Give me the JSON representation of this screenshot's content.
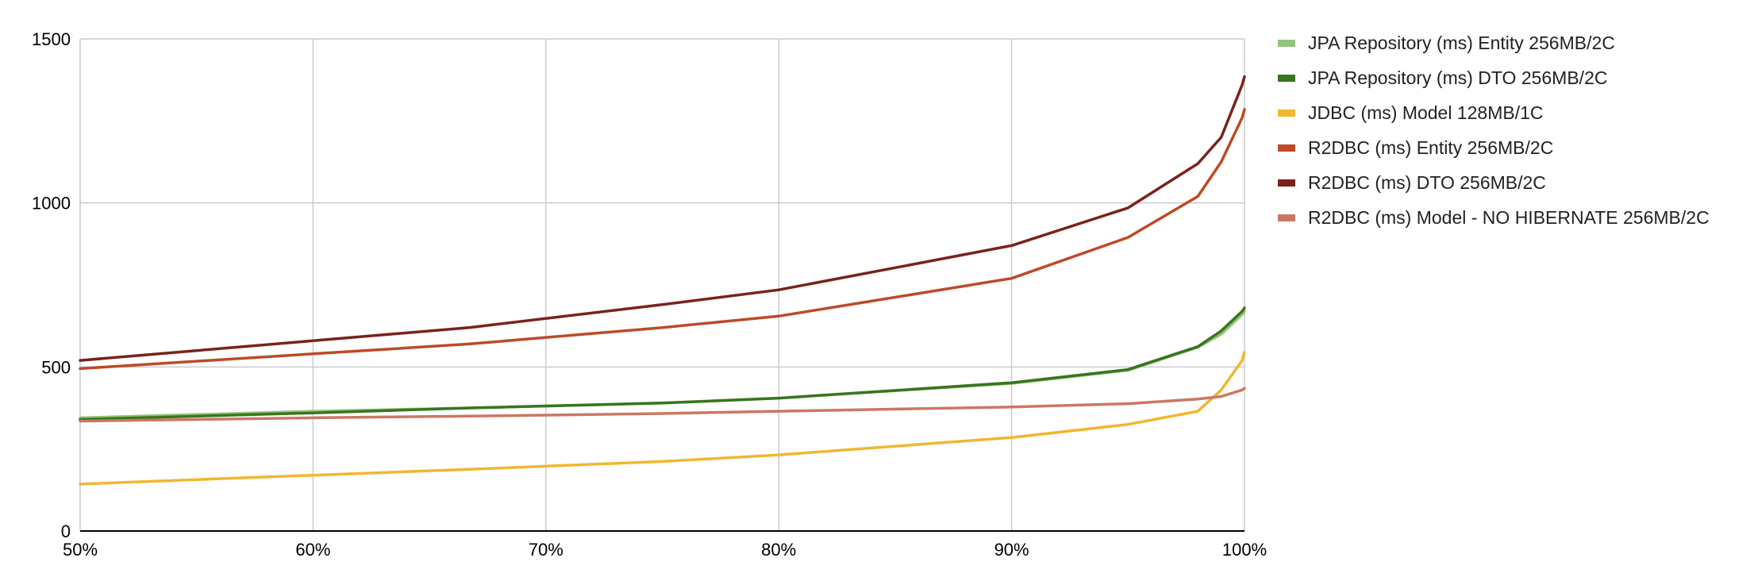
{
  "chart_data": {
    "type": "line",
    "title": "",
    "xlabel": "",
    "ylabel": "",
    "xlim": [
      50,
      100
    ],
    "ylim": [
      0,
      1500
    ],
    "grid": true,
    "legend_position": "right",
    "x_ticks": [
      "50%",
      "60%",
      "70%",
      "80%",
      "90%",
      "100%"
    ],
    "y_ticks": [
      "0",
      "500",
      "1000",
      "1500"
    ],
    "x": [
      50,
      60,
      66.7,
      75,
      80,
      90,
      95,
      98,
      99,
      99.9,
      100
    ],
    "series": [
      {
        "name": "JPA Repository (ms) Entity 256MB/2C",
        "color": "#93c47d",
        "values": [
          345,
          365,
          375,
          390,
          405,
          450,
          490,
          560,
          600,
          660,
          670
        ]
      },
      {
        "name": "JPA Repository (ms) DTO 256MB/2C",
        "color": "#38761d",
        "values": [
          340,
          360,
          375,
          390,
          405,
          452,
          492,
          562,
          610,
          670,
          680
        ]
      },
      {
        "name": "JDBC (ms) Model 128MB/1C",
        "color": "#f1b72f",
        "values": [
          143,
          170,
          188,
          212,
          232,
          285,
          325,
          365,
          430,
          520,
          545
        ]
      },
      {
        "name": "R2DBC (ms) Entity 256MB/2C",
        "color": "#be4a27",
        "values": [
          495,
          540,
          570,
          620,
          655,
          770,
          895,
          1020,
          1125,
          1260,
          1285
        ]
      },
      {
        "name": "R2DBC (ms) DTO 256MB/2C",
        "color": "#78231c",
        "values": [
          520,
          580,
          620,
          690,
          735,
          870,
          985,
          1120,
          1200,
          1360,
          1385
        ]
      },
      {
        "name": "R2DBC (ms) Model - NO HIBERNATE 256MB/2C",
        "color": "#cc7764",
        "values": [
          335,
          345,
          350,
          358,
          365,
          378,
          388,
          402,
          410,
          430,
          435
        ]
      }
    ]
  },
  "colors": {
    "grid": "#cccccc",
    "axis": "#000000",
    "tick_text": "#000000"
  }
}
